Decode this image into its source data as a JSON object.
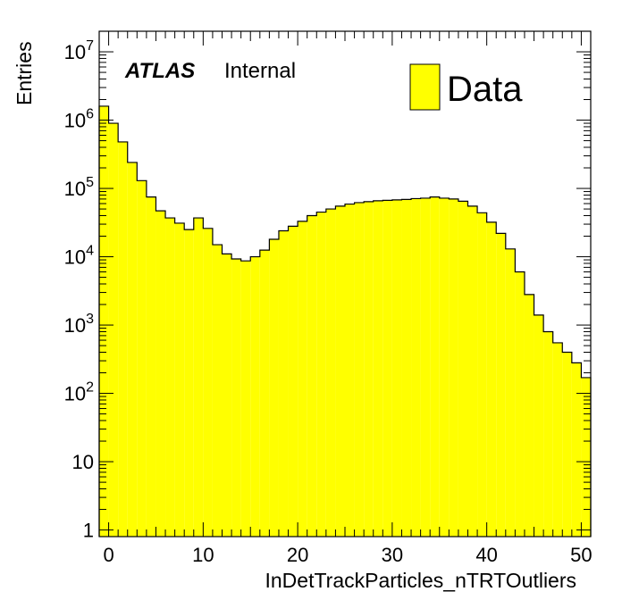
{
  "chart_data": {
    "type": "bar",
    "xlabel": "InDetTrackParticles_nTRTOutliers",
    "ylabel": "Entries",
    "label_bold": "ATLAS",
    "label_status": "Internal",
    "xlim": [
      -1,
      51
    ],
    "ylim": [
      0.8,
      20000000
    ],
    "yscale": "log",
    "grid": false,
    "legend_position": "top-right",
    "x_ticks": [
      "0",
      "10",
      "20",
      "30",
      "40",
      "50"
    ],
    "y_ticks": [
      {
        "base": "1",
        "exp": ""
      },
      {
        "base": "10",
        "exp": ""
      },
      {
        "base": "10",
        "exp": "2"
      },
      {
        "base": "10",
        "exp": "3"
      },
      {
        "base": "10",
        "exp": "4"
      },
      {
        "base": "10",
        "exp": "5"
      },
      {
        "base": "10",
        "exp": "6"
      },
      {
        "base": "10",
        "exp": "7"
      }
    ],
    "bin_width": 1,
    "series": [
      {
        "name": "Data",
        "color": "#ffff00",
        "edges_start": -1,
        "values": [
          1600000,
          900000,
          480000,
          240000,
          130000,
          75000,
          47000,
          37000,
          31000,
          25000,
          37000,
          26000,
          15000,
          11000,
          9300,
          8700,
          10000,
          12500,
          18000,
          24000,
          28000,
          33000,
          40000,
          45000,
          50000,
          55000,
          59000,
          62000,
          64000,
          66000,
          67000,
          68000,
          69000,
          71000,
          72000,
          75000,
          72000,
          70000,
          65000,
          55000,
          44000,
          32000,
          22000,
          13000,
          6000,
          2800,
          1400,
          800,
          550,
          400,
          280,
          170
        ]
      }
    ]
  }
}
